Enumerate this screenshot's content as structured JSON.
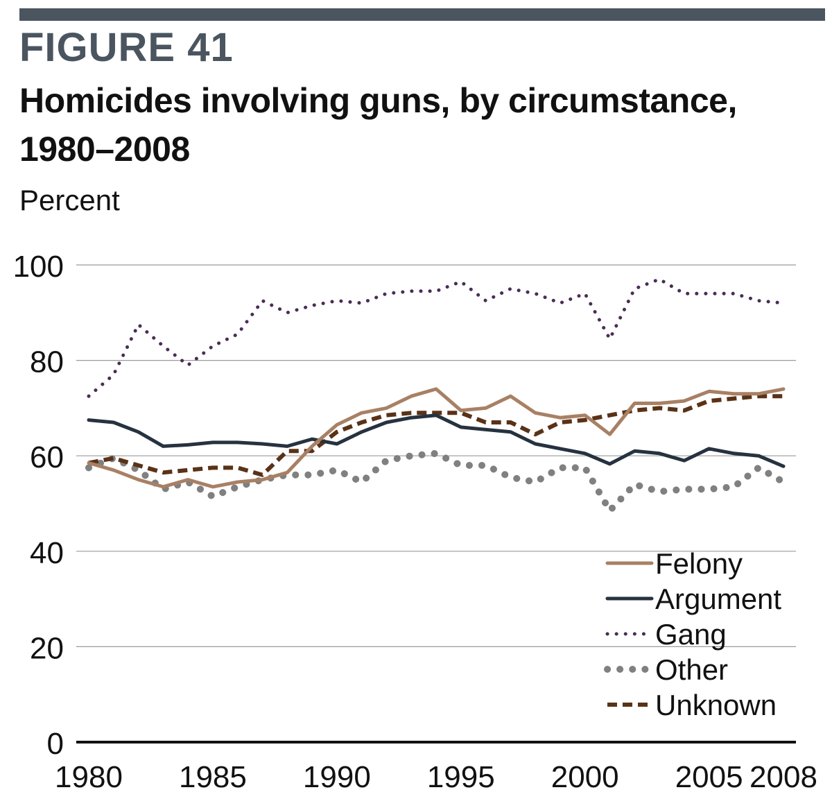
{
  "figure_label": "FIGURE 41",
  "chart_data": {
    "type": "line",
    "title": "Homicides involving guns, by circumstance, 1980–2008",
    "ylabel": "Percent",
    "xlabel": "",
    "ylim": [
      0,
      100
    ],
    "yticks": [
      "0",
      "20",
      "40",
      "60",
      "80",
      "100"
    ],
    "xticks": [
      "1980",
      "1985",
      "1990",
      "1995",
      "2000",
      "2005",
      "2008"
    ],
    "x": [
      1980,
      1981,
      1982,
      1983,
      1984,
      1985,
      1986,
      1987,
      1988,
      1989,
      1990,
      1991,
      1992,
      1993,
      1994,
      1995,
      1996,
      1997,
      1998,
      1999,
      2000,
      2001,
      2002,
      2003,
      2004,
      2005,
      2006,
      2007,
      2008
    ],
    "legend_position": "bottom-right",
    "series": [
      {
        "name": "Felony",
        "style": "solid",
        "color": "#a88064",
        "values": [
          58.5,
          57,
          55,
          53.5,
          55,
          53.5,
          54.5,
          55,
          56.5,
          62,
          66.5,
          69,
          70,
          72.5,
          74,
          69.5,
          70,
          72.5,
          69,
          68,
          68.5,
          64.5,
          71,
          71,
          71.5,
          73.5,
          73,
          73,
          74
        ]
      },
      {
        "name": "Argument",
        "style": "solid",
        "color": "#26323f",
        "values": [
          67.5,
          67,
          65,
          62,
          62.3,
          62.8,
          62.8,
          62.5,
          62,
          63.5,
          62.5,
          65,
          67,
          68,
          68.5,
          66,
          65.5,
          65,
          62.5,
          61.5,
          60.5,
          58.3,
          61,
          60.5,
          59,
          61.5,
          60.5,
          60,
          57.8
        ]
      },
      {
        "name": "Gang",
        "style": "dotted",
        "color": "#4a2c56",
        "values": [
          72.5,
          77,
          87.5,
          83,
          79,
          83,
          85.5,
          92.5,
          90,
          91.5,
          92.5,
          92,
          94,
          94.5,
          94.5,
          96.5,
          92.5,
          95,
          94,
          92,
          94,
          84.5,
          95,
          97,
          94,
          94,
          94,
          92.5,
          92
        ]
      },
      {
        "name": "Other",
        "style": "dotted-bold",
        "color": "#808080",
        "values": [
          57.5,
          59.5,
          57,
          53,
          54.5,
          51.5,
          53.5,
          55,
          56,
          56,
          57,
          54.5,
          59,
          60,
          60.5,
          58,
          58,
          55.5,
          54.5,
          57.5,
          57.5,
          48.5,
          54,
          52.5,
          53,
          53,
          53.5,
          57.5,
          54.5
        ]
      },
      {
        "name": "Unknown",
        "style": "dashed",
        "color": "#5a3217",
        "values": [
          58.5,
          59.5,
          58,
          56.5,
          57,
          57.5,
          57.5,
          56,
          61,
          61,
          65,
          67,
          68.5,
          69,
          69,
          69,
          67,
          67,
          64.5,
          67,
          67.5,
          68.5,
          69.5,
          70,
          69.5,
          71.5,
          72,
          72.5,
          72.5
        ]
      }
    ]
  }
}
